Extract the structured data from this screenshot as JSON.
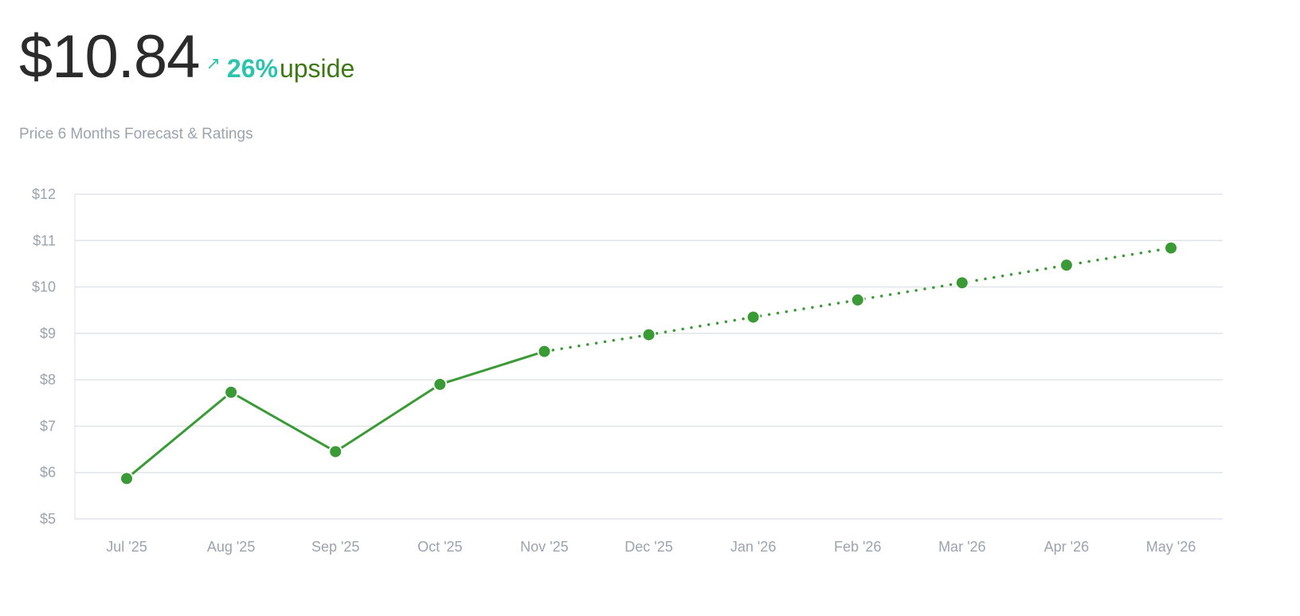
{
  "header": {
    "price": "$10.84",
    "arrow_icon": "arrow-up-right-icon",
    "arrow_glyph": "↗",
    "upside_pct": "26%",
    "upside_label": "upside",
    "subtitle": "Price 6 Months Forecast & Ratings"
  },
  "colors": {
    "line": "#3a9a35",
    "grid": "#dcdfe4",
    "tick_text": "#9ca3af",
    "price_text": "#2b2b2b",
    "upside_pct": "#2bc4ad",
    "upside_word": "#3e7a14"
  },
  "chart_data": {
    "type": "line",
    "title": "",
    "xlabel": "",
    "ylabel": "",
    "categories": [
      "Jul '25",
      "Aug '25",
      "Sep '25",
      "Oct '25",
      "Nov '25",
      "Dec '25",
      "Jan '26",
      "Feb '26",
      "Mar '26",
      "Apr '26",
      "May '26"
    ],
    "y_ticks": [
      "$5",
      "$6",
      "$7",
      "$8",
      "$9",
      "$10",
      "$11",
      "$12"
    ],
    "ylim": [
      5,
      12
    ],
    "grid": true,
    "legend": "none",
    "series": [
      {
        "style": "solid",
        "x": [
          "Jul '25",
          "Aug '25",
          "Sep '25",
          "Oct '25",
          "Nov '25"
        ],
        "values": [
          5.87,
          7.73,
          6.45,
          7.9,
          8.61
        ]
      },
      {
        "style": "dotted",
        "x": [
          "Nov '25",
          "Dec '25",
          "Jan '26",
          "Feb '26",
          "Mar '26",
          "Apr '26",
          "May '26"
        ],
        "values": [
          8.61,
          8.97,
          9.35,
          9.72,
          10.09,
          10.47,
          10.84
        ]
      }
    ]
  }
}
